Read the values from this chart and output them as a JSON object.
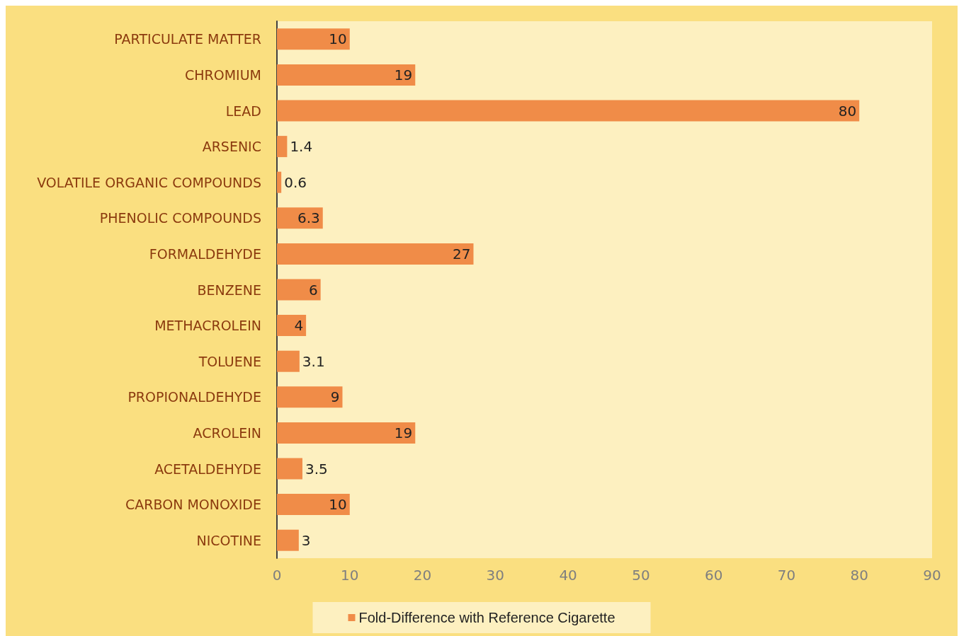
{
  "chart_data": {
    "type": "bar",
    "orientation": "horizontal",
    "categories": [
      "PARTICULATE MATTER",
      "CHROMIUM",
      "LEAD",
      "ARSENIC",
      "VOLATILE ORGANIC COMPOUNDS",
      "PHENOLIC COMPOUNDS",
      "FORMALDEHYDE",
      "BENZENE",
      "METHACROLEIN",
      "TOLUENE",
      "PROPIONALDEHYDE",
      "ACROLEIN",
      "ACETALDEHYDE",
      "CARBON MONOXIDE",
      "NICOTINE"
    ],
    "series": [
      {
        "name": "Fold-Difference with Reference Cigarette",
        "color": "#f08c48",
        "values": [
          10,
          19,
          80,
          1.4,
          0.6,
          6.3,
          27,
          6,
          4,
          3.1,
          9,
          19,
          3.5,
          10,
          3
        ]
      }
    ],
    "xlim": [
      0,
      90
    ],
    "xticks": [
      0,
      10,
      20,
      30,
      40,
      50,
      60,
      70,
      80,
      90
    ],
    "data_labels": true,
    "grid": false,
    "legend": "bottom"
  }
}
